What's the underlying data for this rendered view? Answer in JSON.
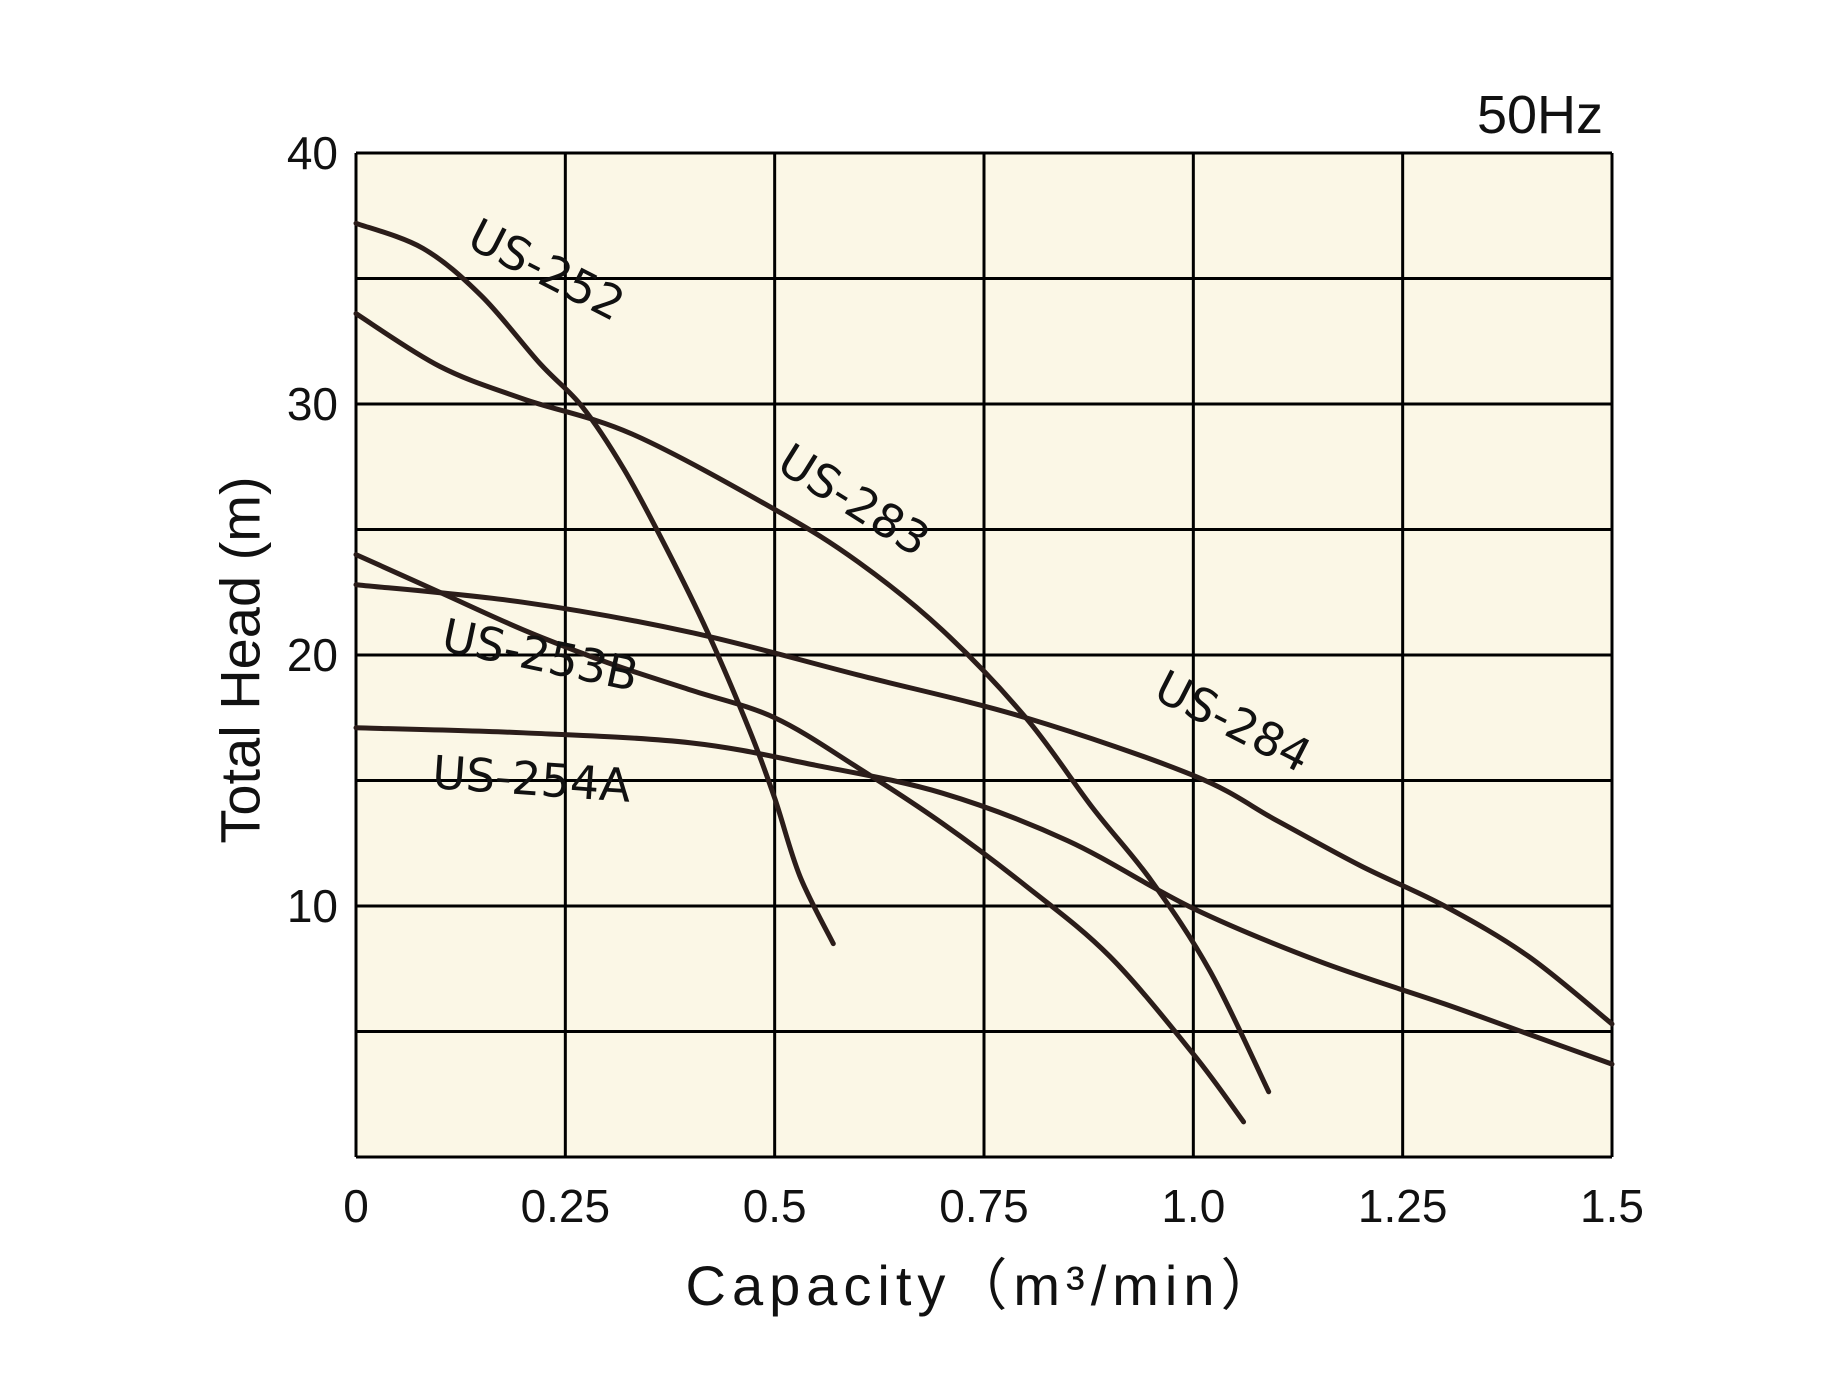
{
  "chart_data": {
    "type": "line",
    "frequency_label": "50Hz",
    "xlabel": "Capacity（m³/min）",
    "ylabel": "Total Head (m)",
    "xlim": [
      0,
      1.5
    ],
    "ylim": [
      0,
      40
    ],
    "x_ticks": [
      {
        "value": 0,
        "label": "0"
      },
      {
        "value": 0.25,
        "label": "0.25"
      },
      {
        "value": 0.5,
        "label": "0.5"
      },
      {
        "value": 0.75,
        "label": "0.75"
      },
      {
        "value": 1.0,
        "label": "1.0"
      },
      {
        "value": 1.25,
        "label": "1.25"
      },
      {
        "value": 1.5,
        "label": "1.5"
      }
    ],
    "y_ticks": [
      {
        "value": 10,
        "label": "10"
      },
      {
        "value": 20,
        "label": "20"
      },
      {
        "value": 30,
        "label": "30"
      },
      {
        "value": 40,
        "label": "40"
      }
    ],
    "x_grid": [
      0,
      0.25,
      0.5,
      0.75,
      1.0,
      1.25,
      1.5
    ],
    "y_grid": [
      0,
      5,
      10,
      15,
      20,
      25,
      30,
      35,
      40
    ],
    "grid": true,
    "colors": {
      "background": "#fbf7e6",
      "line": "#2b1d1a",
      "grid": "#000000"
    },
    "series": [
      {
        "name": "US-252",
        "points": [
          [
            0,
            37.2
          ],
          [
            0.08,
            36.2
          ],
          [
            0.15,
            34.3
          ],
          [
            0.22,
            31.6
          ],
          [
            0.27,
            29.9
          ],
          [
            0.32,
            27.4
          ],
          [
            0.37,
            24.3
          ],
          [
            0.42,
            20.9
          ],
          [
            0.47,
            17.0
          ],
          [
            0.5,
            14.3
          ],
          [
            0.53,
            11.2
          ],
          [
            0.57,
            8.5
          ]
        ]
      },
      {
        "name": "US-283",
        "points": [
          [
            0,
            33.6
          ],
          [
            0.1,
            31.5
          ],
          [
            0.2,
            30.2
          ],
          [
            0.33,
            28.8
          ],
          [
            0.5,
            25.8
          ],
          [
            0.6,
            23.7
          ],
          [
            0.7,
            21.0
          ],
          [
            0.8,
            17.5
          ],
          [
            0.88,
            13.9
          ],
          [
            0.95,
            11.0
          ],
          [
            1.02,
            7.4
          ],
          [
            1.09,
            2.6
          ]
        ]
      },
      {
        "name": "US-284",
        "points": [
          [
            0,
            22.8
          ],
          [
            0.2,
            22.1
          ],
          [
            0.4,
            20.9
          ],
          [
            0.6,
            19.2
          ],
          [
            0.8,
            17.5
          ],
          [
            1.0,
            15.2
          ],
          [
            1.1,
            13.4
          ],
          [
            1.2,
            11.6
          ],
          [
            1.3,
            10.0
          ],
          [
            1.4,
            8.0
          ],
          [
            1.5,
            5.3
          ]
        ]
      },
      {
        "name": "US-253B",
        "points": [
          [
            0,
            24.0
          ],
          [
            0.1,
            22.5
          ],
          [
            0.2,
            21.0
          ],
          [
            0.3,
            19.7
          ],
          [
            0.4,
            18.6
          ],
          [
            0.5,
            17.5
          ],
          [
            0.6,
            15.5
          ],
          [
            0.7,
            13.3
          ],
          [
            0.8,
            10.8
          ],
          [
            0.9,
            8.0
          ],
          [
            1.0,
            4.1
          ],
          [
            1.06,
            1.4
          ]
        ]
      },
      {
        "name": "US-254A",
        "points": [
          [
            0,
            17.1
          ],
          [
            0.2,
            16.9
          ],
          [
            0.4,
            16.5
          ],
          [
            0.55,
            15.6
          ],
          [
            0.7,
            14.5
          ],
          [
            0.85,
            12.6
          ],
          [
            1.0,
            9.9
          ],
          [
            1.15,
            7.8
          ],
          [
            1.3,
            6.1
          ],
          [
            1.4,
            4.9
          ],
          [
            1.5,
            3.7
          ]
        ]
      }
    ],
    "series_label_positions": [
      {
        "name": "US-252",
        "x": 0.13,
        "y": 36.3,
        "angle": 27
      },
      {
        "name": "US-283",
        "x": 0.5,
        "y": 27.4,
        "angle": 32
      },
      {
        "name": "US-284",
        "x": 0.95,
        "y": 18.3,
        "angle": 27
      },
      {
        "name": "US-253B",
        "x": 0.1,
        "y": 20.2,
        "angle": 12
      },
      {
        "name": "US-254A",
        "x": 0.09,
        "y": 14.7,
        "angle": 4
      }
    ]
  }
}
